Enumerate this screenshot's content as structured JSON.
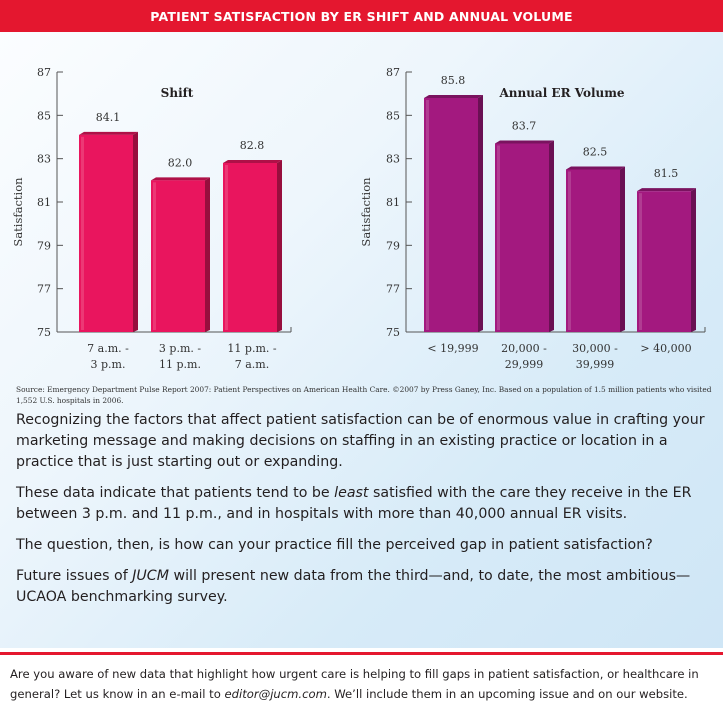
{
  "header": {
    "title": "PATIENT SATISFACTION BY ER SHIFT AND ANNUAL VOLUME"
  },
  "colors": {
    "header": "#e4172f",
    "shift_bar": "#e9155e",
    "volume_bar": "#a3197f"
  },
  "chart_data": [
    {
      "type": "bar",
      "title": "Shift",
      "ylabel": "Satisfaction",
      "ylim": [
        75,
        87
      ],
      "yticks": [
        75,
        77,
        79,
        81,
        83,
        85,
        87
      ],
      "categories": [
        [
          "7 a.m. -",
          "3 p.m."
        ],
        [
          "3 p.m. -",
          "11 p.m."
        ],
        [
          "11 p.m. -",
          "7 a.m."
        ]
      ],
      "values": [
        84.1,
        82.0,
        82.8
      ],
      "value_labels": [
        "84.1",
        "82.0",
        "82.8"
      ],
      "color": "#e9155e"
    },
    {
      "type": "bar",
      "title": "Annual ER Volume",
      "ylabel": "Satisfaction",
      "ylim": [
        75,
        87
      ],
      "yticks": [
        75,
        77,
        79,
        81,
        83,
        85,
        87
      ],
      "categories": [
        [
          "< 19,999"
        ],
        [
          "20,000 -",
          "29,999"
        ],
        [
          "30,000 -",
          "39,999"
        ],
        [
          "> 40,000"
        ]
      ],
      "values": [
        85.8,
        83.7,
        82.5,
        81.5
      ],
      "value_labels": [
        "85.8",
        "83.7",
        "82.5",
        "81.5"
      ],
      "color": "#a3197f"
    }
  ],
  "source": {
    "note": "Source: Emergency Department Pulse Report 2007: Patient Perspectives on American Health Care. ©2007 by Press Ganey, Inc. Based on a population of 1.5 million patients who visited 1,552 U.S. hospitals in 2006."
  },
  "article": {
    "p1": "Recognizing the factors that affect patient satisfaction can be of enormous value in crafting your marketing message and making decisions on staffing in an existing practice or location in a practice that is just starting out or expanding.",
    "p2_a": "These data indicate that patients tend to be ",
    "p2_em": "least",
    "p2_b": " satisfied with the care they receive in the ER between 3 p.m. and 11 p.m., and in hospitals with more than 40,000 annual ER visits.",
    "p3": "The question, then, is how can your practice fill the perceived gap in patient satisfaction?",
    "p4_a": "Future issues of ",
    "p4_em": "JUCM",
    "p4_b": " will present new data from the third—and, to date, the most ambitious—UCAOA benchmarking survey."
  },
  "footer": {
    "text_a": "Are you aware of new data that highlight how urgent care is helping to fill gaps in patient satisfaction, or healthcare in general? Let us know in an e-mail to ",
    "email": "editor@jucm.com",
    "text_b": ". We’ll include them in an upcoming issue and on our website."
  }
}
